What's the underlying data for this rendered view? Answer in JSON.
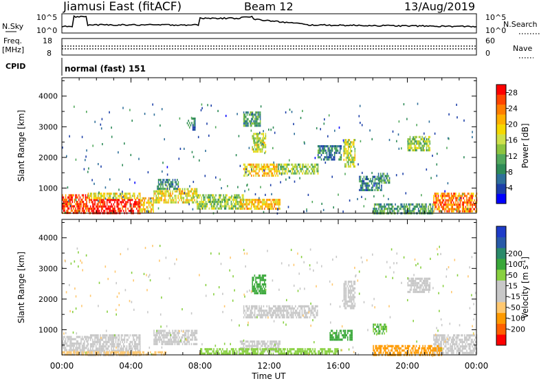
{
  "header": {
    "station": "Jiamusi East (fitACF)",
    "beam": "Beam 12",
    "date": "13/Aug/2019"
  },
  "noise_panel": {
    "left_label": "N.Sky",
    "left_ticks": [
      "10^5",
      "10^0"
    ],
    "right_label": "N.Search",
    "right_ticks": [
      "10^5",
      "10^0"
    ]
  },
  "freq_panel": {
    "left_label_1": "Freq.",
    "left_label_2": "[MHz]",
    "left_ticks": [
      "18",
      "8"
    ],
    "right_label": "Nave",
    "right_ticks": [
      "60",
      "0"
    ]
  },
  "cpid_panel": {
    "label": "CPID",
    "value": "normal (fast) 151"
  },
  "colors": {
    "power_scale": [
      "#0000ff",
      "#1c3fa8",
      "#2e6f9a",
      "#2e8b57",
      "#52a85c",
      "#8dc43f",
      "#cfe04a",
      "#f5d800",
      "#ffb000",
      "#ff7e00",
      "#ff4500",
      "#ff0000"
    ],
    "velocity_scale": [
      "#ff0000",
      "#ff6000",
      "#ff9a00",
      "#ffc870",
      "#c8c8c8",
      "#c8c8c8",
      "#88d040",
      "#3aa83a",
      "#2a8a6a",
      "#285aa8",
      "#1e3cc8"
    ],
    "ground_scatter": "#c8c8c8"
  },
  "chart_data": [
    {
      "type": "heatmap",
      "title": "Power",
      "xlabel": "Time UT",
      "ylabel": "Slant Range [km]",
      "xlim": [
        "00:00",
        "24:00"
      ],
      "ylim": [
        180,
        4600
      ],
      "x_ticks": [
        "00:00",
        "04:00",
        "08:00",
        "12:00",
        "16:00",
        "20:00",
        "00:00"
      ],
      "y_ticks": [
        1000,
        2000,
        3000,
        4000
      ],
      "colorbar": {
        "label": "Power [dB]",
        "ticks": [
          4,
          8,
          12,
          16,
          20,
          24,
          28
        ],
        "range": [
          0,
          30
        ]
      },
      "regions": [
        {
          "t0": 0.0,
          "t1": 1.5,
          "r0": 200,
          "r1": 800,
          "level": 26
        },
        {
          "t0": 1.5,
          "t1": 4.5,
          "r0": 200,
          "r1": 650,
          "level": 29
        },
        {
          "t0": 1.5,
          "t1": 4.5,
          "r0": 650,
          "r1": 850,
          "level": 18
        },
        {
          "t0": 4.5,
          "t1": 5.3,
          "r0": 250,
          "r1": 700,
          "level": 20
        },
        {
          "t0": 5.3,
          "t1": 7.8,
          "r0": 500,
          "r1": 1000,
          "level": 18
        },
        {
          "t0": 7.8,
          "t1": 10.5,
          "r0": 300,
          "r1": 800,
          "level": 14
        },
        {
          "t0": 10.3,
          "t1": 12.6,
          "r0": 300,
          "r1": 650,
          "level": 20
        },
        {
          "t0": 10.5,
          "t1": 11.5,
          "r0": 3000,
          "r1": 3500,
          "level": 10
        },
        {
          "t0": 11.0,
          "t1": 11.8,
          "r0": 2200,
          "r1": 2800,
          "level": 16
        },
        {
          "t0": 10.5,
          "t1": 12.5,
          "r0": 1400,
          "r1": 1800,
          "level": 20
        },
        {
          "t0": 12.5,
          "t1": 14.8,
          "r0": 1500,
          "r1": 1800,
          "level": 14
        },
        {
          "t0": 14.8,
          "t1": 16.2,
          "r0": 1900,
          "r1": 2400,
          "level": 8
        },
        {
          "t0": 16.3,
          "t1": 17.0,
          "r0": 1700,
          "r1": 2600,
          "level": 16
        },
        {
          "t0": 17.2,
          "t1": 18.5,
          "r0": 900,
          "r1": 1400,
          "level": 8
        },
        {
          "t0": 18.3,
          "t1": 19.0,
          "r0": 1200,
          "r1": 1500,
          "level": 10
        },
        {
          "t0": 20.0,
          "t1": 21.3,
          "r0": 2200,
          "r1": 2700,
          "level": 14
        },
        {
          "t0": 21.5,
          "t1": 24.0,
          "r0": 250,
          "r1": 850,
          "level": 24
        },
        {
          "t0": 18.0,
          "t1": 21.5,
          "r0": 200,
          "r1": 500,
          "level": 10
        },
        {
          "t0": 5.5,
          "t1": 6.8,
          "r0": 1000,
          "r1": 1300,
          "level": 8
        },
        {
          "t0": 7.3,
          "t1": 7.7,
          "r0": 2900,
          "r1": 3300,
          "level": 8
        }
      ]
    },
    {
      "type": "heatmap",
      "title": "Velocity",
      "xlabel": "Time UT",
      "ylabel": "Slant Range [km]",
      "xlim": [
        "00:00",
        "24:00"
      ],
      "ylim": [
        180,
        4600
      ],
      "x_ticks": [
        "00:00",
        "04:00",
        "08:00",
        "12:00",
        "16:00",
        "20:00",
        "00:00"
      ],
      "y_ticks": [
        1000,
        2000,
        3000,
        4000
      ],
      "colorbar": {
        "label": "Velocity [m s^-1]",
        "ticks": [
          200,
          100,
          50,
          15,
          -15,
          -50,
          -100,
          -200
        ],
        "range": [
          -250,
          250
        ]
      },
      "regions": [
        {
          "t0": 0.0,
          "t1": 1.5,
          "r0": 200,
          "r1": 800,
          "level": 0
        },
        {
          "t0": 1.5,
          "t1": 4.5,
          "r0": 200,
          "r1": 850,
          "level": 0
        },
        {
          "t0": 5.3,
          "t1": 7.8,
          "r0": 500,
          "r1": 1000,
          "level": 0
        },
        {
          "t0": 10.3,
          "t1": 12.6,
          "r0": 300,
          "r1": 650,
          "level": 0
        },
        {
          "t0": 11.0,
          "t1": 11.8,
          "r0": 2200,
          "r1": 2800,
          "level": 60
        },
        {
          "t0": 10.5,
          "t1": 14.8,
          "r0": 1400,
          "r1": 1800,
          "level": 0
        },
        {
          "t0": 16.3,
          "t1": 17.0,
          "r0": 1700,
          "r1": 2600,
          "level": 0
        },
        {
          "t0": 15.5,
          "t1": 16.8,
          "r0": 700,
          "r1": 1000,
          "level": 60
        },
        {
          "t0": 18.0,
          "t1": 18.8,
          "r0": 900,
          "r1": 1200,
          "level": 50
        },
        {
          "t0": 20.0,
          "t1": 21.3,
          "r0": 2200,
          "r1": 2700,
          "level": 0
        },
        {
          "t0": 21.5,
          "t1": 24.0,
          "r0": 250,
          "r1": 850,
          "level": 0
        },
        {
          "t0": 18.0,
          "t1": 22.0,
          "r0": 200,
          "r1": 500,
          "level": -70
        },
        {
          "t0": 8.0,
          "t1": 16.0,
          "r0": 200,
          "r1": 400,
          "level": 40
        },
        {
          "t0": 0.0,
          "t1": 6.0,
          "r0": 200,
          "r1": 300,
          "level": -40
        }
      ]
    }
  ]
}
